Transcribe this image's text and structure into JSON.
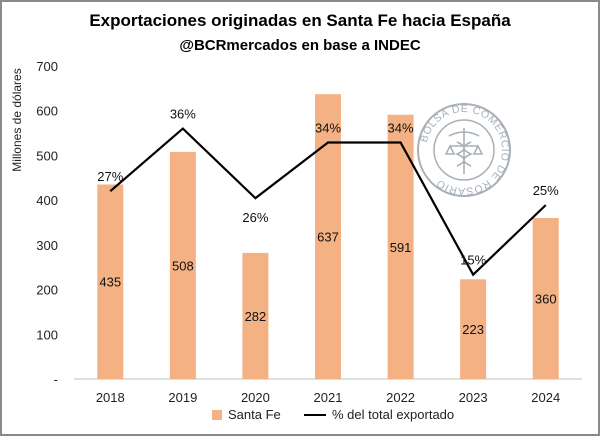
{
  "chart_data": {
    "type": "bar",
    "title": "Exportaciones originadas en Santa Fe hacia España",
    "subtitle": "@BCRmercados en base a INDEC",
    "ylabel": "Millones de dólares",
    "xlabel": "",
    "ylim": [
      0,
      700
    ],
    "yticks": [
      "-",
      "100",
      "200",
      "300",
      "400",
      "500",
      "600",
      "700"
    ],
    "categories": [
      "2018",
      "2019",
      "2020",
      "2021",
      "2022",
      "2023",
      "2024"
    ],
    "series": [
      {
        "name": "Santa Fe",
        "kind": "bar",
        "color": "#f4b183",
        "values": [
          435,
          508,
          282,
          637,
          591,
          223,
          360
        ],
        "labels": [
          "435",
          "508",
          "282",
          "637",
          "591",
          "223",
          "360"
        ]
      },
      {
        "name": "% del total exportado",
        "kind": "line",
        "color": "#000000",
        "values": [
          27,
          36,
          26,
          34,
          34,
          15,
          25
        ],
        "labels": [
          "27%",
          "36%",
          "26%",
          "34%",
          "34%",
          "15%",
          "25%"
        ]
      }
    ],
    "legend_position": "bottom",
    "grid": false
  },
  "watermark": {
    "text": "BOLSA DE COMERCIO DE ROSARIO",
    "icon": "caduceus-seal-icon",
    "color": "#9aa3ab"
  }
}
